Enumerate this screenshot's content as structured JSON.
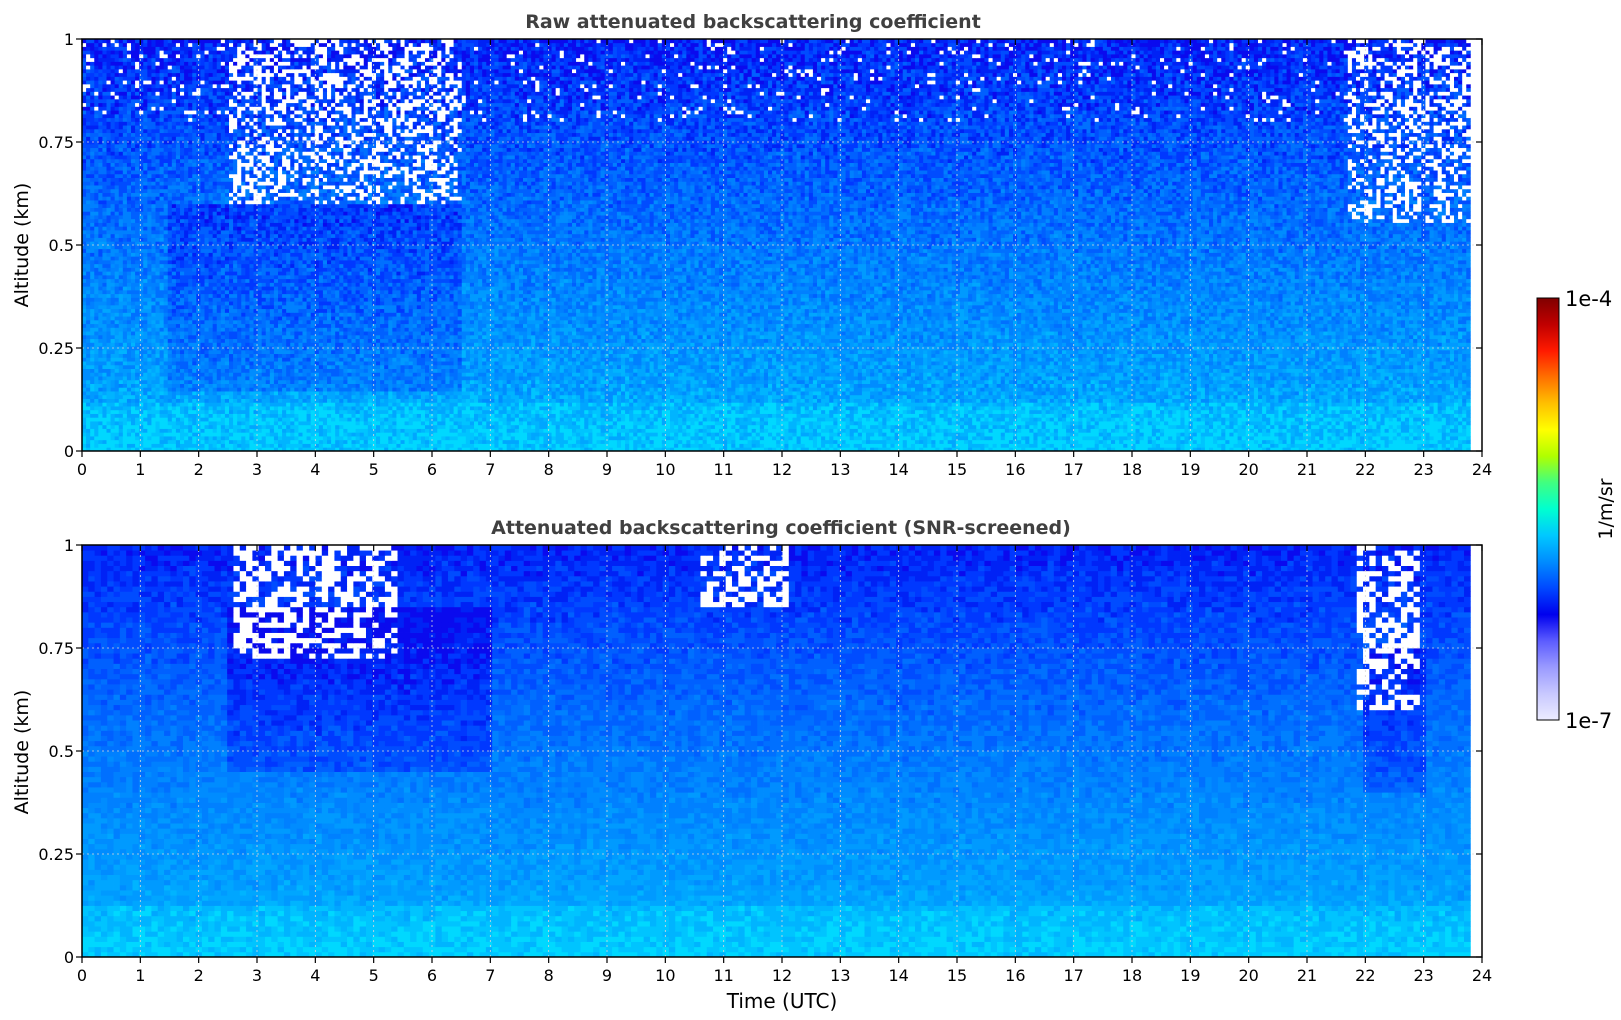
{
  "chart_data": [
    {
      "type": "heatmap",
      "title": "Raw attenuated backscattering coefficient",
      "xlabel": "",
      "ylabel": "Altitude (km)",
      "xlim": [
        0,
        24
      ],
      "ylim": [
        0,
        1
      ],
      "x_ticks": [
        "0",
        "1",
        "2",
        "3",
        "4",
        "5",
        "6",
        "7",
        "8",
        "9",
        "10",
        "11",
        "12",
        "13",
        "14",
        "15",
        "16",
        "17",
        "18",
        "19",
        "20",
        "21",
        "22",
        "23",
        "24"
      ],
      "y_ticks": [
        "0",
        "0.25",
        "0.5",
        "0.75",
        "1"
      ],
      "y_tick_values": [
        0,
        0.25,
        0.5,
        0.75,
        1
      ],
      "grid": true,
      "data_extent_x": [
        0,
        23.8
      ],
      "screened": false,
      "features": [
        {
          "t_start": 2.5,
          "t_end": 6.5,
          "alt_start": 0.6,
          "alt_end": 1.0,
          "level": "missing/noisy"
        },
        {
          "t_start": 21.7,
          "t_end": 23.8,
          "alt_start": 0.55,
          "alt_end": 1.0,
          "level": "missing/noisy"
        },
        {
          "t_start": 1.5,
          "t_end": 6.5,
          "alt_start": 0.15,
          "alt_end": 0.6,
          "level": "low"
        },
        {
          "t_start": 0,
          "t_end": 23.8,
          "alt_start": 0.0,
          "alt_end": 0.12,
          "level": "moderate"
        }
      ]
    },
    {
      "type": "heatmap",
      "title": "Attenuated backscattering coefficient (SNR-screened)",
      "xlabel": "Time (UTC)",
      "ylabel": "Altitude (km)",
      "xlim": [
        0,
        24
      ],
      "ylim": [
        0,
        1
      ],
      "x_ticks": [
        "0",
        "1",
        "2",
        "3",
        "4",
        "5",
        "6",
        "7",
        "8",
        "9",
        "10",
        "11",
        "12",
        "13",
        "14",
        "15",
        "16",
        "17",
        "18",
        "19",
        "20",
        "21",
        "22",
        "23",
        "24"
      ],
      "y_ticks": [
        "0",
        "0.25",
        "0.5",
        "0.75",
        "1"
      ],
      "y_tick_values": [
        0,
        0.25,
        0.5,
        0.75,
        1
      ],
      "grid": true,
      "data_extent_x": [
        0,
        23.8
      ],
      "screened": true,
      "features": [
        {
          "t_start": 2.6,
          "t_end": 5.4,
          "alt_start": 0.72,
          "alt_end": 1.0,
          "level": "screened"
        },
        {
          "t_start": 10.6,
          "t_end": 12.1,
          "alt_start": 0.85,
          "alt_end": 1.0,
          "level": "screened"
        },
        {
          "t_start": 21.9,
          "t_end": 22.9,
          "alt_start": 0.6,
          "alt_end": 1.0,
          "level": "screened"
        },
        {
          "t_start": 2.5,
          "t_end": 7.0,
          "alt_start": 0.45,
          "alt_end": 0.85,
          "level": "low"
        },
        {
          "t_start": 22.0,
          "t_end": 23.0,
          "alt_start": 0.4,
          "alt_end": 0.75,
          "level": "low"
        },
        {
          "t_start": 0,
          "t_end": 23.8,
          "alt_start": 0.0,
          "alt_end": 0.12,
          "level": "moderate"
        }
      ]
    }
  ],
  "colorbar": {
    "label": "1/m/sr",
    "min_label": "1e-7",
    "max_label": "1e-4",
    "scale": "log",
    "colormap": [
      "#ececff",
      "#c8c8ff",
      "#9a9aff",
      "#5c5cff",
      "#0000ee",
      "#0048ff",
      "#008cff",
      "#00c8ff",
      "#00ffd0",
      "#40ff80",
      "#b0ff00",
      "#ffff00",
      "#ffc000",
      "#ff7000",
      "#ff1a00",
      "#c00000",
      "#800000"
    ]
  },
  "colors": {
    "title": "#404040",
    "screened": "#ffffff"
  }
}
